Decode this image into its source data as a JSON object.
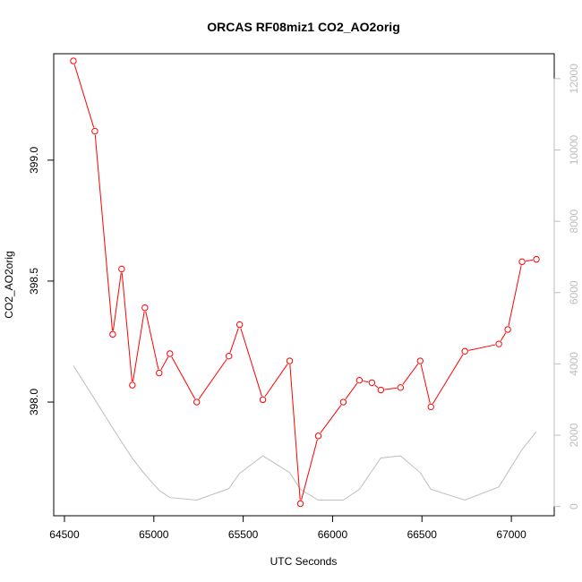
{
  "chart_data": {
    "type": "line",
    "title": "ORCAS RF08miz1 CO2_AO2orig",
    "xlabel": "UTC Seconds",
    "ylabel": "CO2_AO2orig",
    "xlim": [
      64440,
      67240
    ],
    "ylim": [
      397.53,
      399.44
    ],
    "y2lim": [
      -260,
      12700
    ],
    "x_ticks": [
      64500,
      65000,
      65500,
      66000,
      66500,
      67000
    ],
    "y_ticks": [
      398.0,
      398.5,
      399.0
    ],
    "y_tick_labels": [
      "398.0",
      "398.5",
      "399.0"
    ],
    "y2_ticks": [
      0,
      2000,
      4000,
      6000,
      8000,
      10000,
      12000
    ],
    "grid": false,
    "colors": {
      "primary": "#ff0000",
      "secondary": "#bebebe"
    },
    "series": [
      {
        "axis": "left",
        "marker": "open-circle",
        "x": [
          64550,
          64670,
          64770,
          64820,
          64880,
          64950,
          65030,
          65090,
          65240,
          65420,
          65480,
          65610,
          65760,
          65820,
          65920,
          66060,
          66150,
          66220,
          66270,
          66380,
          66490,
          66550,
          66740,
          66930,
          66980,
          67060,
          67140
        ],
        "y": [
          399.41,
          399.12,
          398.28,
          398.55,
          398.07,
          398.39,
          398.12,
          398.2,
          398.0,
          398.19,
          398.32,
          398.01,
          398.17,
          397.58,
          397.86,
          398.0,
          398.09,
          398.08,
          398.05,
          398.06,
          398.17,
          397.98,
          398.21,
          398.24,
          398.3,
          398.58,
          398.59
        ]
      },
      {
        "axis": "right",
        "x": [
          64550,
          64670,
          64770,
          64880,
          64950,
          65030,
          65090,
          65240,
          65420,
          65480,
          65610,
          65760,
          65820,
          65920,
          66060,
          66150,
          66270,
          66380,
          66490,
          66550,
          66740,
          66930,
          67060,
          67140
        ],
        "y": [
          3950,
          3000,
          2200,
          1350,
          900,
          450,
          250,
          180,
          500,
          930,
          1420,
          950,
          480,
          180,
          180,
          480,
          1360,
          1420,
          950,
          480,
          180,
          550,
          1600,
          2100
        ]
      }
    ]
  }
}
